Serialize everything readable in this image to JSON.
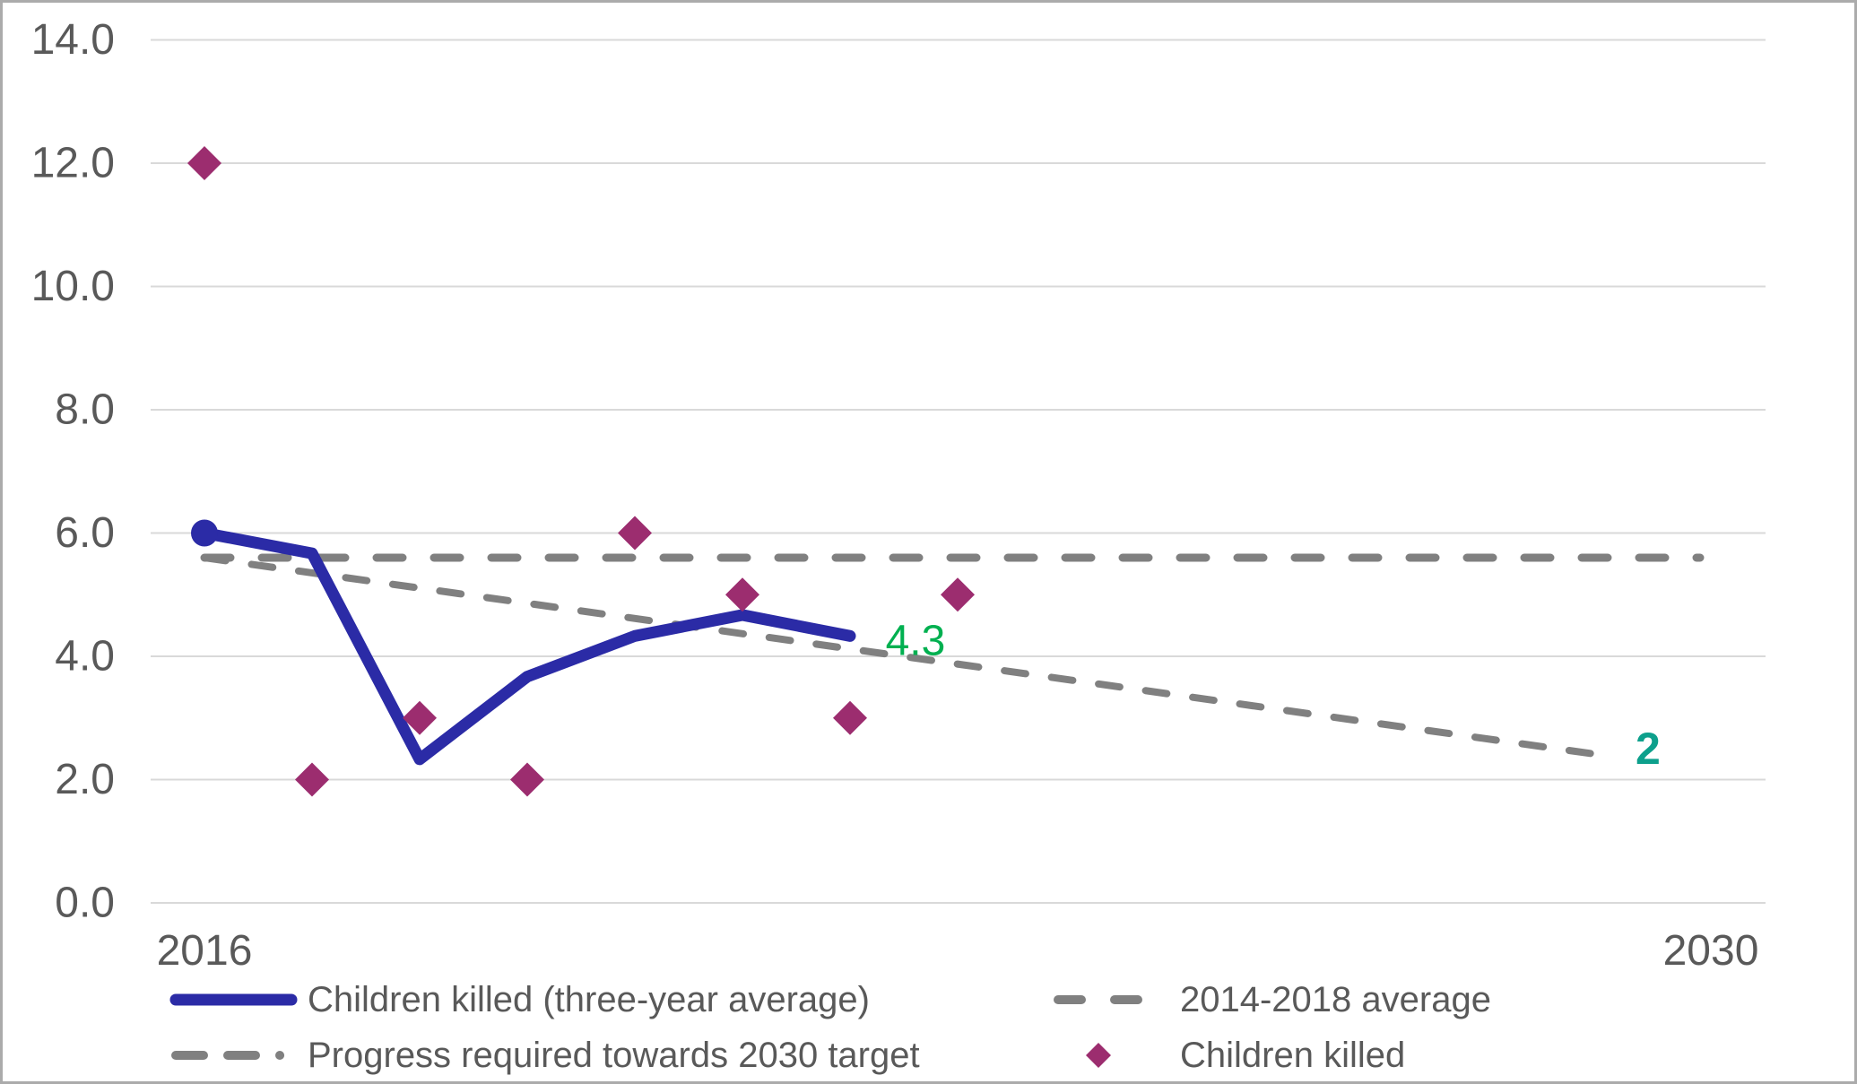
{
  "frame": {
    "background_color": "#FFFFFF",
    "border_color": "#ABABAB"
  },
  "chart_data": {
    "type": "line",
    "title": "",
    "xlabel": "",
    "ylabel": "",
    "x_axis": {
      "tick_labels": [
        "2016",
        "2030"
      ],
      "tick_years": [
        2016,
        2030
      ],
      "range_years": [
        2016,
        2030
      ]
    },
    "y_axis": {
      "tick_labels": [
        "0.0",
        "2.0",
        "4.0",
        "6.0",
        "8.0",
        "10.0",
        "12.0",
        "14.0"
      ],
      "min": 0,
      "max": 14,
      "step": 2
    },
    "grid": "horizontal-only",
    "legend_position": "bottom",
    "series": [
      {
        "name": "2014-2018 average",
        "type": "dashed-line",
        "dash": "long",
        "color": "#808080",
        "points": [
          [
            2016,
            5.6
          ],
          [
            2029.9,
            5.6
          ]
        ]
      },
      {
        "name": "Progress required towards 2030 target",
        "type": "dashed-line",
        "dash": "short",
        "color": "#808080",
        "points": [
          [
            2016,
            5.6
          ],
          [
            2029.1,
            2.37
          ]
        ]
      },
      {
        "name": "Children killed (three-year average)",
        "type": "line",
        "color": "#2B2BA6",
        "start_marker": "circle",
        "points": [
          [
            2016,
            6.0
          ],
          [
            2017,
            5.67
          ],
          [
            2018,
            2.33
          ],
          [
            2019,
            3.67
          ],
          [
            2020,
            4.33
          ],
          [
            2021,
            4.67
          ],
          [
            2022,
            4.33
          ]
        ]
      },
      {
        "name": "Children killed",
        "type": "scatter-diamond",
        "color": "#9C2D6F",
        "points": [
          [
            2016,
            12
          ],
          [
            2017,
            2
          ],
          [
            2018,
            3
          ],
          [
            2019,
            2
          ],
          [
            2020,
            6
          ],
          [
            2021,
            5
          ],
          [
            2022,
            3
          ],
          [
            2023,
            5
          ]
        ]
      }
    ],
    "annotations": [
      {
        "text": "4.3",
        "color": "#00B050",
        "bold": false,
        "year": 2022.33,
        "value": 4.25
      },
      {
        "text": "2",
        "color": "#0DA08C",
        "bold": true,
        "year": 2029.3,
        "value": 2.5
      }
    ],
    "colors": {
      "gridline": "#D9D9D9",
      "axis_text": "#595959"
    }
  },
  "legend": {
    "text_color": "#595959",
    "items": [
      {
        "label": "Children killed (three-year average)",
        "swatch": "solid-line",
        "color": "#2B2BA6"
      },
      {
        "label": "Progress required towards 2030 target",
        "swatch": "dash-dash-dot-line",
        "color": "#808080"
      },
      {
        "label": "2014-2018 average",
        "swatch": "long-dash-line",
        "color": "#808080"
      },
      {
        "label": "Children killed",
        "swatch": "diamond",
        "color": "#9C2D6F"
      }
    ]
  }
}
